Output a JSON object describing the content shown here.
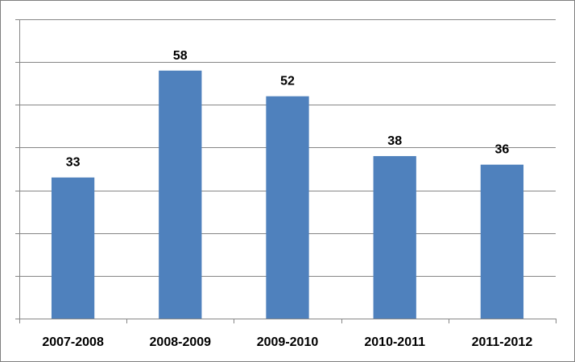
{
  "chart_data": {
    "type": "bar",
    "categories": [
      "2007-2008",
      "2008-2009",
      "2009-2010",
      "2010-2011",
      "2011-2012"
    ],
    "values": [
      33,
      58,
      52,
      38,
      36
    ],
    "title": "",
    "xlabel": "",
    "ylabel": "",
    "ylim": [
      0,
      70
    ],
    "grid": true,
    "y_tick_labels_shown": false,
    "data_labels_shown": true,
    "legend": "none",
    "colors": {
      "bar": "#4f81bd",
      "grid": "#868686",
      "axis": "#868686",
      "border": "#7f7f7f"
    }
  }
}
